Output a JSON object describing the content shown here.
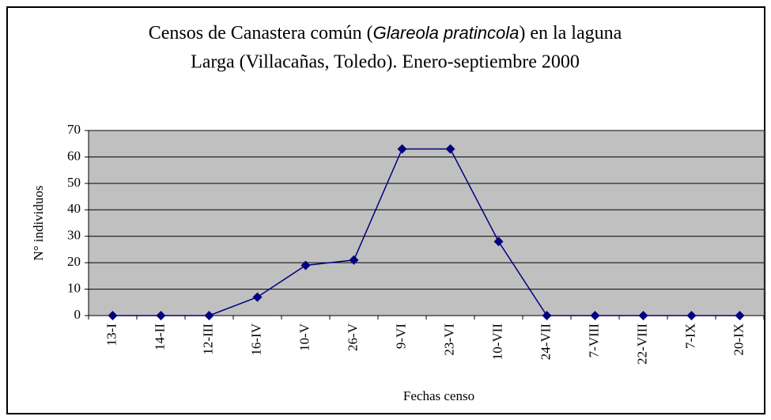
{
  "chart_data": {
    "type": "line",
    "title": [
      "Censos de Canastera común (",
      "Glareola pratincola",
      ") en la laguna",
      "Larga (Villacañas, Toledo). Enero-septiembre 2000"
    ],
    "xlabel": "Fechas censo",
    "ylabel": "N° individuos",
    "categories": [
      "13-I",
      "14-II",
      "12-III",
      "16-IV",
      "10-V",
      "26-V",
      "9-VI",
      "23-VI",
      "10-VII",
      "24-VII",
      "7-VIII",
      "22-VIII",
      "7-IX",
      "20-IX"
    ],
    "values": [
      0,
      0,
      0,
      7,
      19,
      21,
      63,
      63,
      28,
      0,
      0,
      0,
      0,
      0
    ],
    "color": "#000080",
    "ylim": [
      0,
      70
    ],
    "yticks": [
      0,
      10,
      20,
      30,
      40,
      50,
      60,
      70
    ],
    "grid": true
  }
}
